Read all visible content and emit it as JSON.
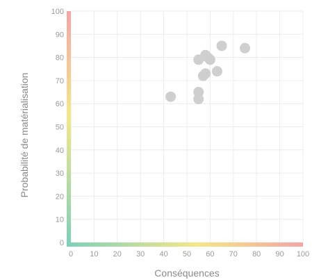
{
  "chart_data": {
    "type": "scatter",
    "title": "",
    "xlabel": "Conséquences",
    "ylabel": "Probabilité de matérialisation",
    "xlim": [
      0,
      100
    ],
    "ylim": [
      0,
      100
    ],
    "x_ticks": [
      0,
      10,
      20,
      30,
      40,
      50,
      60,
      70,
      80,
      90,
      100
    ],
    "y_ticks": [
      0,
      10,
      20,
      30,
      40,
      50,
      60,
      70,
      80,
      90,
      100
    ],
    "grid": true,
    "axis_gradient": {
      "low": "#7fd0b8",
      "mid": "#f4e78a",
      "high": "#f3a6a6"
    },
    "point_color": "#cfcfcf",
    "points": [
      {
        "x": 43,
        "y": 63
      },
      {
        "x": 55,
        "y": 62
      },
      {
        "x": 55,
        "y": 65
      },
      {
        "x": 55,
        "y": 79
      },
      {
        "x": 57,
        "y": 72
      },
      {
        "x": 58,
        "y": 73
      },
      {
        "x": 58,
        "y": 81
      },
      {
        "x": 59,
        "y": 80
      },
      {
        "x": 60,
        "y": 79
      },
      {
        "x": 63,
        "y": 74
      },
      {
        "x": 65,
        "y": 85
      },
      {
        "x": 75,
        "y": 84
      }
    ]
  }
}
